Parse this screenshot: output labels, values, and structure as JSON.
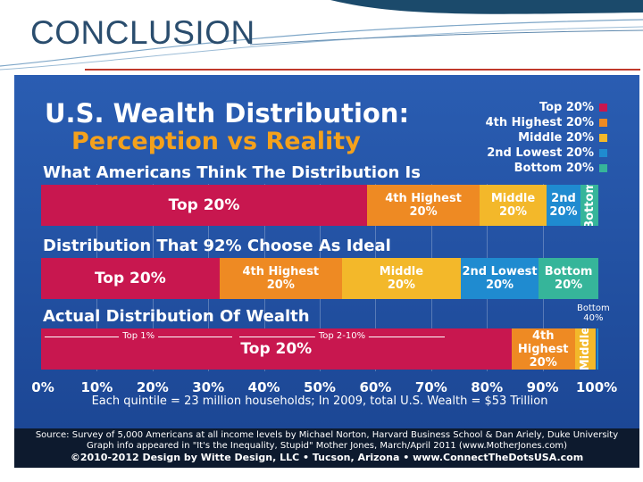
{
  "slide": {
    "title": "CONCLUSION"
  },
  "infographic": {
    "title_line1": "U.S. Wealth Distribution:",
    "title_line2": "Perception vs Reality",
    "legend": [
      {
        "label": "Top 20%",
        "color": "#c8174f"
      },
      {
        "label": "4th Highest 20%",
        "color": "#ee8a23"
      },
      {
        "label": "Middle 20%",
        "color": "#f3b82a"
      },
      {
        "label": "2nd Lowest 20%",
        "color": "#1f8bd0"
      },
      {
        "label": "Bottom 20%",
        "color": "#36b59a"
      }
    ],
    "caption": "Each quintile = 23 million households; In 2009, total U.S. Wealth = $53 Trillion",
    "source_line1": "Source: Survey of 5,000 Americans at all income levels by Michael Norton, Harvard Business School & Dan Ariely, Duke University",
    "source_line2": "Graph info appeared in \"It's the Inequality, Stupid\" Mother Jones, March/April 2011 (www.MotherJones.com)",
    "source_line3": "©2010-2012 Design by Witte Design, LLC • Tucson, Arizona • www.ConnectTheDotsUSA.com"
  },
  "chart_data": {
    "type": "bar",
    "orientation": "horizontal-stacked",
    "title": "U.S. Wealth Distribution: Perception vs Reality",
    "xlim": [
      0,
      100
    ],
    "x_tick_labels": [
      "0%",
      "10%",
      "20%",
      "30%",
      "40%",
      "50%",
      "60%",
      "70%",
      "80%",
      "90%",
      "100%"
    ],
    "series": [
      {
        "name": "What Americans Think The Distribution Is",
        "segments": [
          {
            "label": [
              "Top 20%"
            ],
            "value": 58.5,
            "color": "#c8174f"
          },
          {
            "label": [
              "4th Highest",
              "20%"
            ],
            "value": 20.2,
            "color": "#ee8a23"
          },
          {
            "label": [
              "Middle",
              "20%"
            ],
            "value": 12.0,
            "color": "#f3b82a"
          },
          {
            "label": [
              "2nd",
              "20%"
            ],
            "value": 6.1,
            "color": "#1f8bd0"
          },
          {
            "label": [
              "Bottom"
            ],
            "value": 3.2,
            "color": "#36b59a",
            "vertical": true
          }
        ]
      },
      {
        "name": "Distribution That 92% Choose As Ideal",
        "segments": [
          {
            "label": [
              "Top 20%"
            ],
            "value": 32.0,
            "color": "#c8174f"
          },
          {
            "label": [
              "4th Highest",
              "20%"
            ],
            "value": 22.0,
            "color": "#ee8a23"
          },
          {
            "label": [
              "Middle",
              "20%"
            ],
            "value": 21.3,
            "color": "#f3b82a"
          },
          {
            "label": [
              "2nd Lowest",
              "20%"
            ],
            "value": 14.0,
            "color": "#1f8bd0"
          },
          {
            "label": [
              "Bottom",
              "20%"
            ],
            "value": 10.7,
            "color": "#36b59a"
          }
        ]
      },
      {
        "name": "Actual Distribution Of Wealth",
        "segments": [
          {
            "label": [
              "Top 20%"
            ],
            "value": 84.4,
            "color": "#c8174f"
          },
          {
            "label": [
              "4th",
              "Highest",
              "20%"
            ],
            "value": 11.4,
            "color": "#ee8a23"
          },
          {
            "label": [
              "Middle"
            ],
            "value": 3.8,
            "color": "#f3b82a",
            "vertical": true
          },
          {
            "label": [],
            "value": 0.4,
            "color": "#1f8bd0"
          }
        ],
        "annotations": [
          {
            "text": "Top 1%",
            "from": 0,
            "to": 35
          },
          {
            "text": "Top 2-10%",
            "from": 35,
            "to": 73
          }
        ],
        "bottom_note": [
          "Bottom",
          "40%"
        ]
      }
    ]
  }
}
